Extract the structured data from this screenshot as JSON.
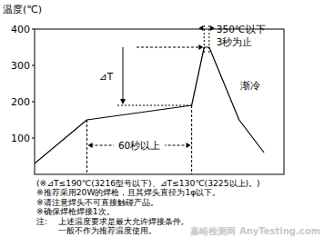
{
  "chart_data": {
    "type": "line",
    "y_label": "温度(℃)",
    "x": [
      0,
      21,
      63,
      68,
      70,
      82,
      92
    ],
    "series": [
      {
        "color": "#000000",
        "values": [
          30,
          150,
          190,
          350,
          350,
          150,
          60
        ]
      }
    ],
    "xlim": [
      0,
      100
    ],
    "ylim": [
      0,
      400
    ],
    "yticks": [
      100,
      200,
      300,
      400
    ],
    "tick_labels": "y",
    "annotations": {
      "peak_limit": "350℃以下",
      "peak_time": "3秒为止",
      "delta_t": "⊿T",
      "cooling": "渐冷",
      "preheat_time": "60秒以上"
    },
    "notes": [
      "(※⊿T≤190℃(3216型号以下)、⊿T≤130℃(3225以上)。)",
      "※推荐采用20W的焊枪，且其焊头直径为1φ以下。",
      "※请注意焊头不可直接触碰产品。",
      "※确保焊枪焊接1次。"
    ],
    "remark_label": "注:",
    "remark": [
      "上述温度要求是最大允许焊接条件,",
      "一般不作为推荐温度使用。"
    ],
    "watermark": "嘉峪检测网 AnyTesting.com"
  }
}
